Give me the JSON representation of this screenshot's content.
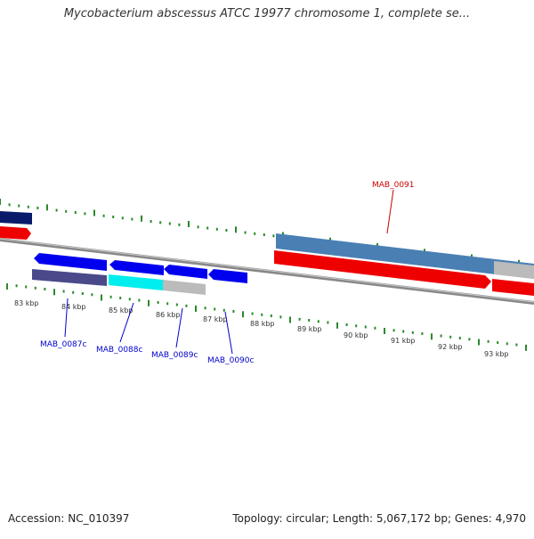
{
  "title": "Mycobacterium abscessus ATCC 19977 chromosome 1, complete se...",
  "footer": {
    "accession": "Accession: NC_010397",
    "summary": "Topology: circular; Length: 5,067,172 bp; Genes: 4,970"
  },
  "colors": {
    "backbone": "#888888",
    "tick_mark": "#2a8a2a",
    "gene_blue": "#0000ee",
    "gene_navy": "#0a1a6a",
    "gene_red": "#ee0000",
    "gene_steelblue": "#4a7fb4",
    "gene_slate": "#4a4a8a",
    "gene_cyan": "#00eeee",
    "gene_gray": "#bbbbbb",
    "label_blue": "#0000cc",
    "label_red": "#cc0000"
  },
  "axis_ticks": [
    "83 kbp",
    "84 kbp",
    "85 kbp",
    "86 kbp",
    "87 kbp",
    "88 kbp",
    "89 kbp",
    "90 kbp",
    "91 kbp",
    "92 kbp",
    "93 kbp"
  ],
  "gene_labels": [
    "MAB_0087c",
    "MAB_0088c",
    "MAB_0089c",
    "MAB_0090c",
    "MAB_0091"
  ]
}
